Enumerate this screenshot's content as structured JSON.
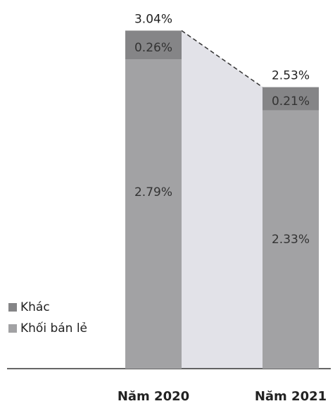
{
  "chart_data": {
    "type": "stacked_bar",
    "categories": [
      "Năm 2020",
      "Năm 2021"
    ],
    "series": [
      {
        "name": "Khối bán lẻ",
        "color": "#a2a2a4",
        "values": [
          2.79,
          2.33
        ],
        "value_labels": [
          "2.79%",
          "2.33%"
        ]
      },
      {
        "name": "Khác",
        "color": "#858587",
        "values": [
          0.26,
          0.21
        ],
        "value_labels": [
          "0.26%",
          "0.21%"
        ]
      }
    ],
    "totals": [
      3.04,
      2.53
    ],
    "total_labels": [
      "3.04%",
      "2.53%"
    ]
  }
}
